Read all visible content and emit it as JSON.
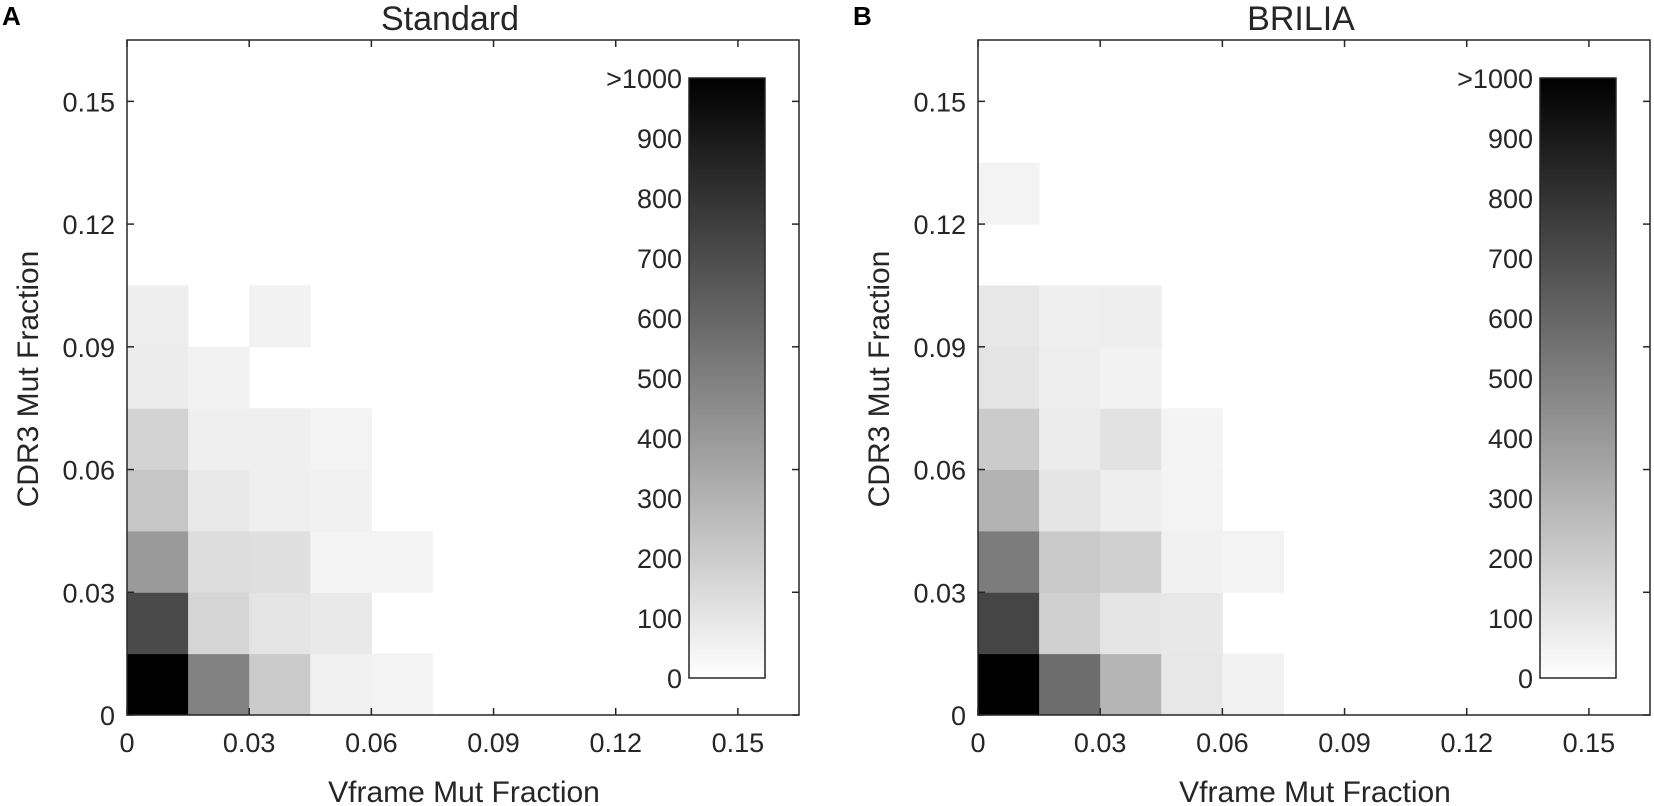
{
  "chart_data": [
    {
      "panel_letter": "A",
      "type": "heatmap",
      "title": "Standard",
      "xlabel": "Vframe Mut Fraction",
      "ylabel": "CDR3 Mut Fraction",
      "xlim": [
        0,
        0.165
      ],
      "ylim": [
        0,
        0.165
      ],
      "xticks": [
        0,
        0.03,
        0.06,
        0.09,
        0.12,
        0.15
      ],
      "yticks": [
        0,
        0.03,
        0.06,
        0.09,
        0.12,
        0.15
      ],
      "xtick_labels": [
        "0",
        "0.03",
        "0.06",
        "0.09",
        "0.12",
        "0.15"
      ],
      "ytick_labels": [
        "0",
        "0.03",
        "0.06",
        "0.09",
        "0.12",
        "0.15"
      ],
      "bin_width": 0.015,
      "cells": [
        {
          "x": 0,
          "y": 0,
          "count": 1000
        },
        {
          "x": 0.015,
          "y": 0,
          "count": 480
        },
        {
          "x": 0.03,
          "y": 0,
          "count": 180
        },
        {
          "x": 0.045,
          "y": 0,
          "count": 30
        },
        {
          "x": 0.06,
          "y": 0,
          "count": 20
        },
        {
          "x": 0,
          "y": 0.015,
          "count": 700
        },
        {
          "x": 0.015,
          "y": 0.015,
          "count": 140
        },
        {
          "x": 0.03,
          "y": 0.015,
          "count": 80
        },
        {
          "x": 0.045,
          "y": 0.015,
          "count": 60
        },
        {
          "x": 0,
          "y": 0.03,
          "count": 380
        },
        {
          "x": 0.015,
          "y": 0.03,
          "count": 110
        },
        {
          "x": 0.03,
          "y": 0.03,
          "count": 100
        },
        {
          "x": 0.045,
          "y": 0.03,
          "count": 18
        },
        {
          "x": 0.06,
          "y": 0.03,
          "count": 15
        },
        {
          "x": 0,
          "y": 0.045,
          "count": 200
        },
        {
          "x": 0.015,
          "y": 0.045,
          "count": 60
        },
        {
          "x": 0.03,
          "y": 0.045,
          "count": 35
        },
        {
          "x": 0.045,
          "y": 0.045,
          "count": 30
        },
        {
          "x": 0,
          "y": 0.06,
          "count": 150
        },
        {
          "x": 0.015,
          "y": 0.06,
          "count": 35
        },
        {
          "x": 0.03,
          "y": 0.06,
          "count": 35
        },
        {
          "x": 0.045,
          "y": 0.06,
          "count": 20
        },
        {
          "x": 0,
          "y": 0.075,
          "count": 50
        },
        {
          "x": 0.015,
          "y": 0.075,
          "count": 25
        },
        {
          "x": 0,
          "y": 0.09,
          "count": 40
        },
        {
          "x": 0.03,
          "y": 0.09,
          "count": 25
        }
      ],
      "colorbar": {
        "labels": [
          ">1000",
          "900",
          "800",
          "700",
          "600",
          "500",
          "400",
          "300",
          "200",
          "100",
          "0"
        ],
        "range": [
          0,
          1000
        ]
      }
    },
    {
      "panel_letter": "B",
      "type": "heatmap",
      "title": "BRILIA",
      "xlabel": "Vframe Mut Fraction",
      "ylabel": "CDR3 Mut Fraction",
      "xlim": [
        0,
        0.165
      ],
      "ylim": [
        0,
        0.165
      ],
      "xticks": [
        0,
        0.03,
        0.06,
        0.09,
        0.12,
        0.15
      ],
      "yticks": [
        0,
        0.03,
        0.06,
        0.09,
        0.12,
        0.15
      ],
      "xtick_labels": [
        "0",
        "0.03",
        "0.06",
        "0.09",
        "0.12",
        "0.15"
      ],
      "ytick_labels": [
        "0",
        "0.03",
        "0.06",
        "0.09",
        "0.12",
        "0.15"
      ],
      "bin_width": 0.015,
      "cells": [
        {
          "x": 0,
          "y": 0,
          "count": 1000
        },
        {
          "x": 0.015,
          "y": 0,
          "count": 560
        },
        {
          "x": 0.03,
          "y": 0,
          "count": 270
        },
        {
          "x": 0.045,
          "y": 0,
          "count": 70
        },
        {
          "x": 0.06,
          "y": 0,
          "count": 25
        },
        {
          "x": 0,
          "y": 0.015,
          "count": 720
        },
        {
          "x": 0.015,
          "y": 0.015,
          "count": 160
        },
        {
          "x": 0.03,
          "y": 0.015,
          "count": 75
        },
        {
          "x": 0.045,
          "y": 0.015,
          "count": 65
        },
        {
          "x": 0,
          "y": 0.03,
          "count": 500
        },
        {
          "x": 0.015,
          "y": 0.03,
          "count": 190
        },
        {
          "x": 0.03,
          "y": 0.03,
          "count": 160
        },
        {
          "x": 0.045,
          "y": 0.03,
          "count": 30
        },
        {
          "x": 0.06,
          "y": 0.03,
          "count": 20
        },
        {
          "x": 0,
          "y": 0.045,
          "count": 280
        },
        {
          "x": 0.015,
          "y": 0.045,
          "count": 80
        },
        {
          "x": 0.03,
          "y": 0.045,
          "count": 40
        },
        {
          "x": 0.045,
          "y": 0.045,
          "count": 20
        },
        {
          "x": 0,
          "y": 0.06,
          "count": 180
        },
        {
          "x": 0.015,
          "y": 0.06,
          "count": 50
        },
        {
          "x": 0.03,
          "y": 0.06,
          "count": 90
        },
        {
          "x": 0.045,
          "y": 0.06,
          "count": 15
        },
        {
          "x": 0,
          "y": 0.075,
          "count": 80
        },
        {
          "x": 0.015,
          "y": 0.075,
          "count": 40
        },
        {
          "x": 0.03,
          "y": 0.075,
          "count": 25
        },
        {
          "x": 0,
          "y": 0.09,
          "count": 70
        },
        {
          "x": 0.015,
          "y": 0.09,
          "count": 35
        },
        {
          "x": 0.03,
          "y": 0.09,
          "count": 40
        },
        {
          "x": 0,
          "y": 0.12,
          "count": 20
        }
      ],
      "colorbar": {
        "labels": [
          ">1000",
          "900",
          "800",
          "700",
          "600",
          "500",
          "400",
          "300",
          "200",
          "100",
          "0"
        ],
        "range": [
          0,
          1000
        ]
      }
    }
  ]
}
